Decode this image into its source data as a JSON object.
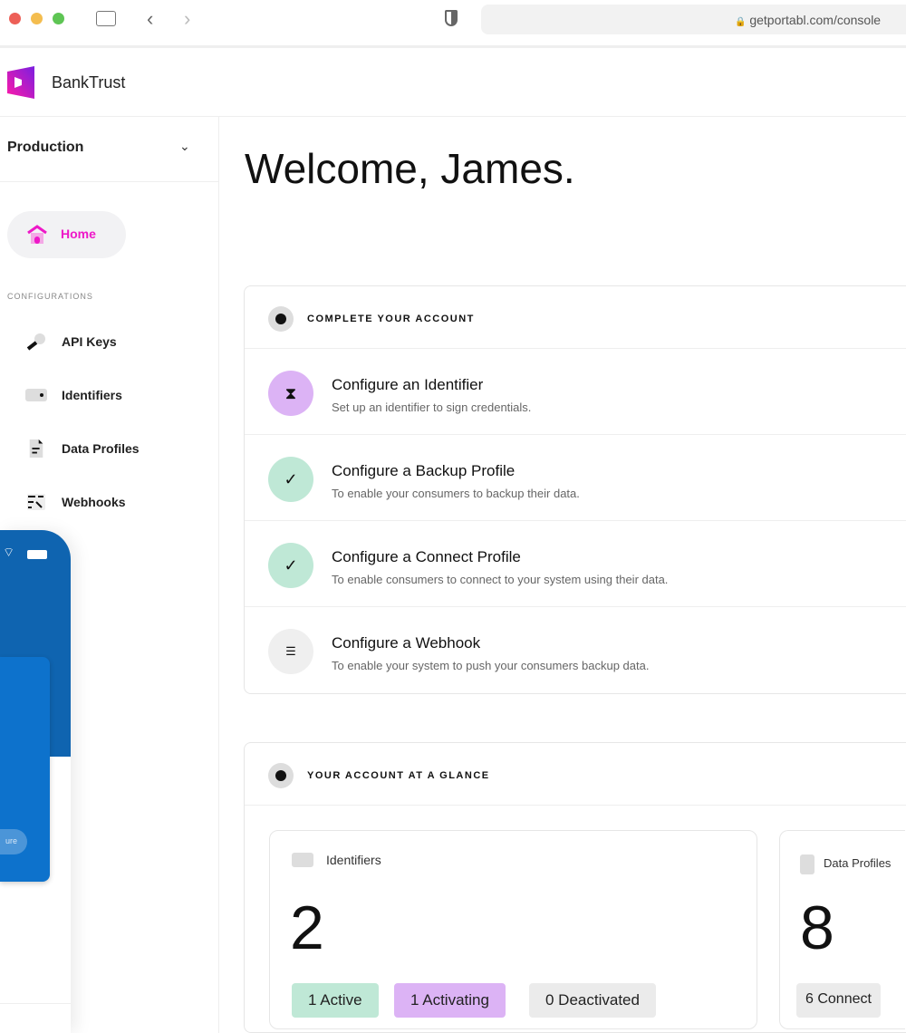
{
  "browser": {
    "url": "getportabl.com/console",
    "colors": {
      "close": "#ed5f57",
      "min": "#f4bd4f",
      "max": "#5ec554"
    }
  },
  "app": {
    "brand": "BankTrust",
    "brand_color": "#ee18c8"
  },
  "sidebar": {
    "environment": "Production",
    "home_label": "Home",
    "section_label": "CONFIGURATIONS",
    "items": [
      {
        "label": "API Keys",
        "icon": "key-icon"
      },
      {
        "label": "Identifiers",
        "icon": "identifier-icon"
      },
      {
        "label": "Data Profiles",
        "icon": "document-icon"
      },
      {
        "label": "Webhooks",
        "icon": "webhook-icon"
      }
    ]
  },
  "phone": {
    "button_label": "ure"
  },
  "main": {
    "title": "Welcome, James.",
    "complete": {
      "title": "COMPLETE YOUR ACCOUNT",
      "steps": [
        {
          "title": "Configure an Identifier",
          "desc": "Set up an identifier to sign credentials.",
          "status": "pending",
          "color": "#dcb3f5"
        },
        {
          "title": "Configure a Backup Profile",
          "desc": "To enable your consumers to backup their data.",
          "status": "done",
          "color": "#bfe8d6"
        },
        {
          "title": "Configure a Connect Profile",
          "desc": "To enable consumers to connect to your system using their data.",
          "status": "done",
          "color": "#bfe8d6"
        },
        {
          "title": "Configure a Webhook",
          "desc": "To enable your system to push your consumers backup data.",
          "status": "todo",
          "color": "#efefef"
        }
      ]
    },
    "glance": {
      "title": "YOUR ACCOUNT AT A GLANCE",
      "identifiers": {
        "label": "Identifiers",
        "count": "2",
        "badges": [
          "1 Active",
          "1 Activating",
          "0 Deactivated"
        ]
      },
      "profiles": {
        "label": "Data Profiles",
        "count": "8",
        "badges": [
          "6 Connect"
        ]
      }
    }
  }
}
